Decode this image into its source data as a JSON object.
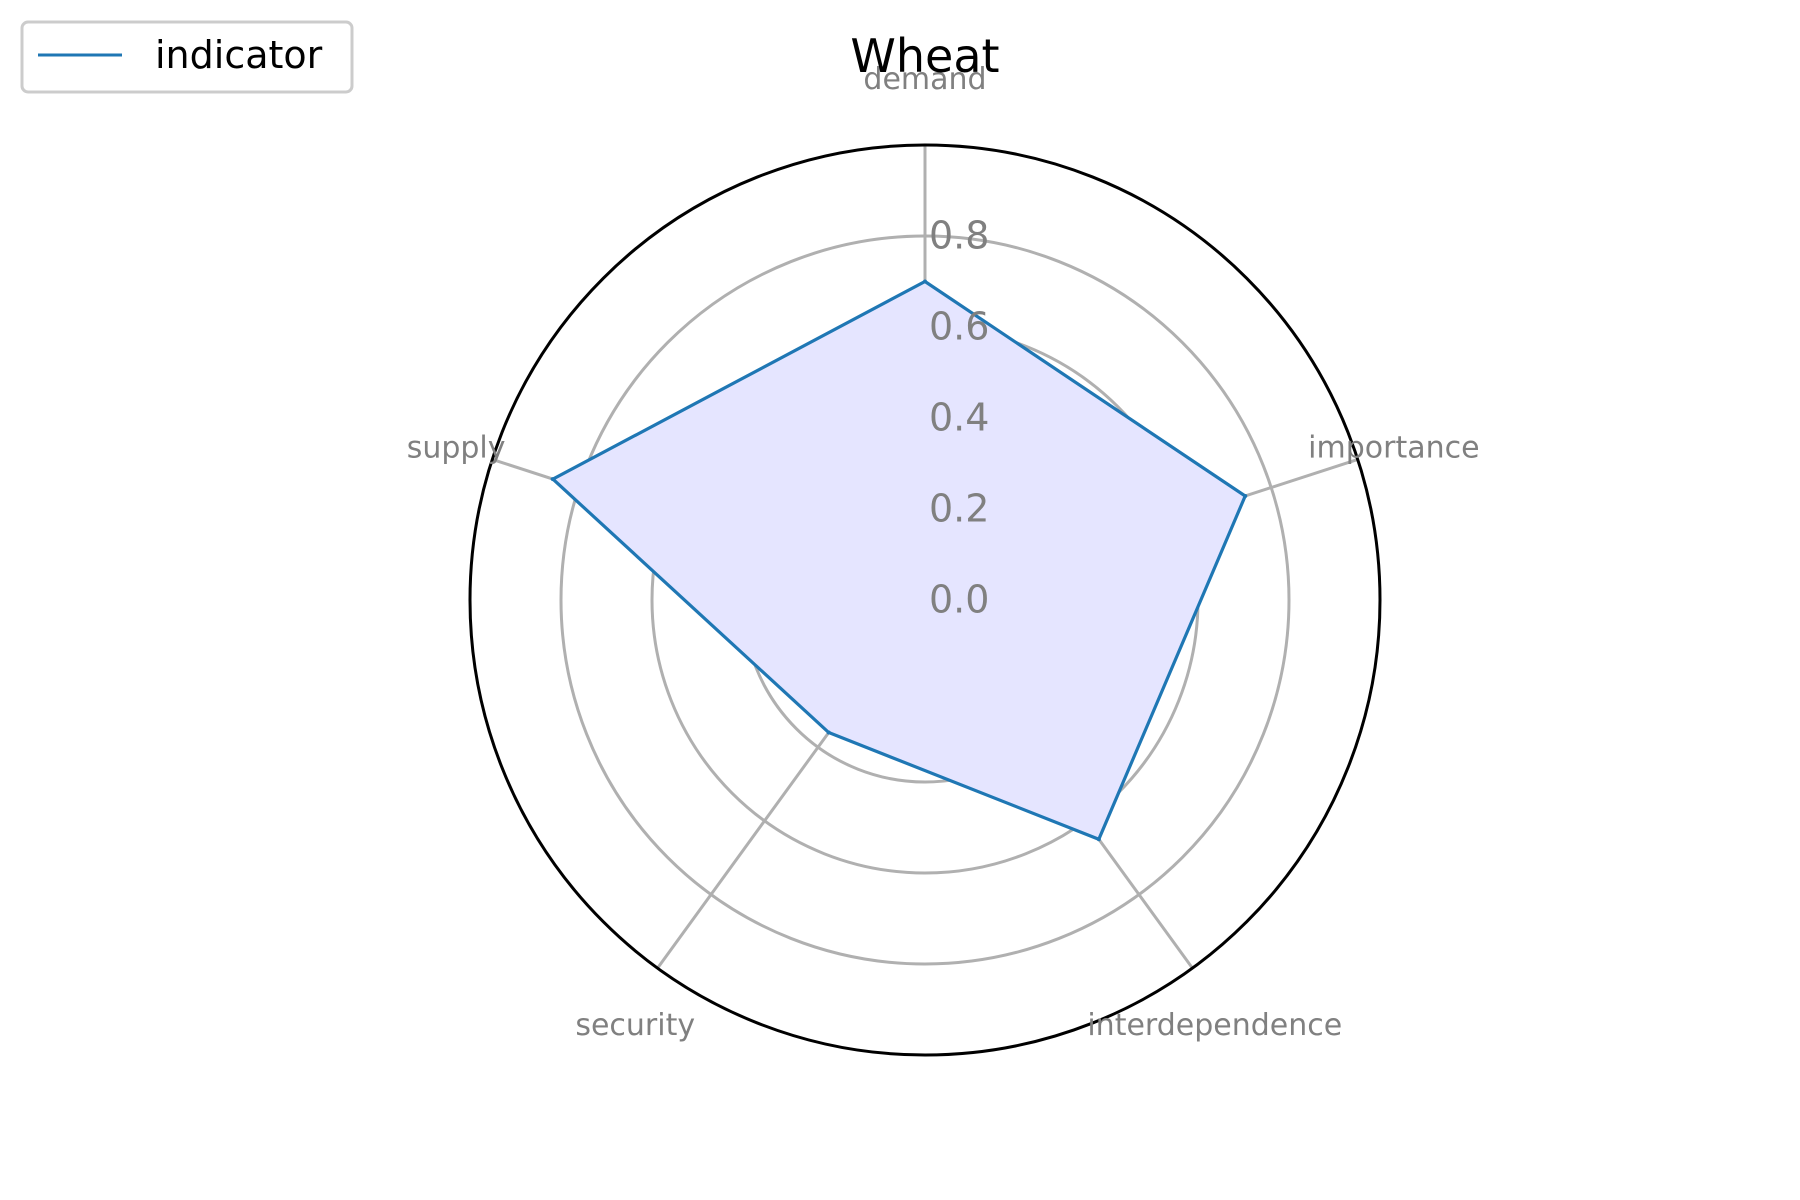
{
  "chart_data": {
    "type": "radar",
    "title": "Wheat",
    "categories": [
      "demand",
      "importance",
      "interdependence",
      "security",
      "supply"
    ],
    "rlim": [
      0,
      1.0
    ],
    "rticks": [
      0.0,
      0.2,
      0.4,
      0.6,
      0.8
    ],
    "rtick_labels": [
      "0.0",
      "0.2",
      "0.4",
      "0.6",
      "0.8"
    ],
    "grid": true,
    "legend_position": "top-left",
    "series": [
      {
        "name": "indicator",
        "values": [
          0.7,
          0.74,
          0.65,
          0.36,
          0.86
        ],
        "line_color": "#1f77b4",
        "fill_color": "#e5e5ff"
      }
    ],
    "grid_color": "#b0b0b0",
    "frame_color": "#000000",
    "label_color": "#808080"
  }
}
